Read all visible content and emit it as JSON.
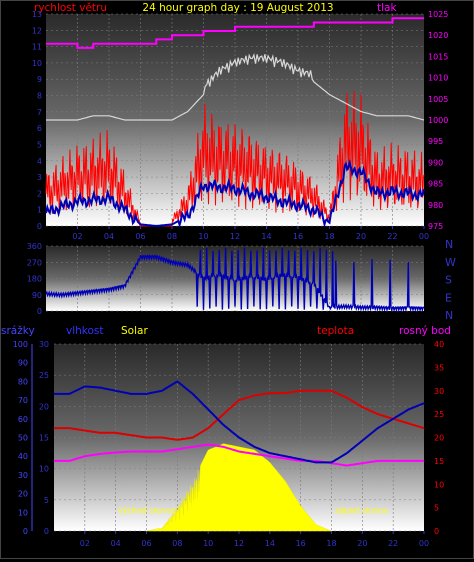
{
  "title": "24 hour graph day : 19 August 2013",
  "colors": {
    "wind_avg": "#0000b4",
    "wind_gust": "#ff0000",
    "pressure": "#ff00ff",
    "humidity": "#0000b4",
    "temperature": "#dc0000",
    "dewpoint": "#ff00ff",
    "solar": "#ffff00",
    "rain_axis": "#4444ff",
    "axis_text": "#3333cc"
  },
  "wind": {
    "left_label": "rychlost větru",
    "right_label": "tlak",
    "y_ticks": [
      "0",
      "1",
      "2",
      "3",
      "4",
      "5",
      "6",
      "7",
      "8",
      "9",
      "10",
      "11",
      "12",
      "13"
    ],
    "pressure_ticks": [
      "975",
      "980",
      "985",
      "990",
      "995",
      "1000",
      "1005",
      "1010",
      "1015",
      "1020",
      "1025"
    ],
    "x_ticks": [
      "02",
      "04",
      "06",
      "08",
      "10",
      "12",
      "14",
      "16",
      "18",
      "20",
      "22",
      "00"
    ]
  },
  "direction": {
    "y_ticks": [
      "0",
      "90",
      "180",
      "270",
      "360"
    ],
    "compass": [
      "N",
      "W",
      "S",
      "E",
      "N"
    ]
  },
  "temp": {
    "rain_label": "srážky",
    "humidity_label": "vlhkost",
    "solar_label": "Solar",
    "temp_label": "teplota",
    "dew_label": "rosný bod",
    "rain_ticks": [
      "0",
      "10",
      "20",
      "30",
      "40",
      "50",
      "60",
      "70",
      "80",
      "90",
      "100"
    ],
    "hum_ticks": [
      "0",
      "5",
      "10",
      "15",
      "20",
      "25",
      "30"
    ],
    "temp_ticks": [
      "0",
      "5",
      "10",
      "15",
      "20",
      "25",
      "30",
      "35",
      "40"
    ],
    "sunrise_label": "východ slunce",
    "sunset_label": "západ slunce",
    "x_ticks": [
      "02",
      "04",
      "06",
      "08",
      "10",
      "12",
      "14",
      "16",
      "18",
      "20",
      "22",
      "00"
    ]
  },
  "chart_data": [
    {
      "type": "line",
      "title": "24 hour graph day : 19 August 2013",
      "xlabel": "",
      "ylabel": "rychlost větru",
      "ylim": [
        0,
        13
      ],
      "y2label": "tlak",
      "y2lim": [
        975,
        1025
      ],
      "x": [
        0,
        1,
        2,
        3,
        4,
        5,
        6,
        7,
        8,
        9,
        10,
        11,
        12,
        13,
        14,
        15,
        16,
        17,
        18,
        19,
        20,
        21,
        22,
        23,
        24
      ],
      "series": [
        {
          "name": "rychlost větru",
          "values": [
            0.8,
            1.2,
            1.5,
            1.6,
            1.7,
            1.0,
            0.1,
            0.0,
            0.1,
            0.6,
            2.5,
            2.4,
            2.3,
            2.0,
            1.8,
            1.5,
            1.3,
            1.0,
            0.2,
            3.6,
            3.3,
            2.0,
            2.1,
            2.0,
            1.9
          ]
        },
        {
          "name": "nárazy",
          "values": [
            2.0,
            2.5,
            3.0,
            3.2,
            3.5,
            2.0,
            0.2,
            0.0,
            0.3,
            1.5,
            4.5,
            4.0,
            3.8,
            3.5,
            3.0,
            2.8,
            2.3,
            1.8,
            0.5,
            5.0,
            4.8,
            2.8,
            3.0,
            2.9,
            2.6
          ]
        },
        {
          "name": "tlak",
          "values": [
            1018,
            1018,
            1017,
            1018,
            1018,
            1018,
            1018,
            1019,
            1020,
            1020,
            1021,
            1021,
            1022,
            1022,
            1022,
            1022,
            1022,
            1023,
            1023,
            1023,
            1023,
            1023,
            1024,
            1024,
            1024
          ]
        },
        {
          "name": "tlak průměr",
          "values": [
            1000,
            1000,
            1000,
            1001,
            1001,
            1000,
            1000,
            1000,
            1000,
            1002,
            1006,
            1010,
            1012,
            1013,
            1013,
            1012,
            1010,
            1009,
            1006,
            1004,
            1002,
            1001,
            1001,
            1001,
            1000
          ]
        }
      ]
    },
    {
      "type": "line",
      "title": "",
      "ylabel": "",
      "ylim": [
        0,
        360
      ],
      "x": [
        0,
        1,
        2,
        3,
        4,
        5,
        6,
        7,
        8,
        9,
        10,
        11,
        12,
        13,
        14,
        15,
        16,
        17,
        18,
        19,
        20,
        21,
        22,
        23,
        24
      ],
      "series": [
        {
          "name": "směr větru",
          "values": [
            95,
            90,
            100,
            110,
            120,
            140,
            300,
            300,
            270,
            255,
            180,
            200,
            170,
            190,
            175,
            200,
            185,
            150,
            20,
            25,
            20,
            20,
            15,
            18,
            15
          ]
        }
      ]
    },
    {
      "type": "line",
      "title": "",
      "ylabel": "vlhkost",
      "ylim": [
        0,
        30
      ],
      "y2label": "teplota",
      "y2lim": [
        0,
        40
      ],
      "x": [
        1,
        2,
        3,
        4,
        5,
        6,
        7,
        8,
        9,
        10,
        11,
        12,
        13,
        14,
        15,
        16,
        17,
        18,
        19,
        20,
        21,
        22,
        23,
        24
      ],
      "series": [
        {
          "name": "vlhkost",
          "values": [
            22.0,
            23.2,
            23.0,
            22.5,
            22.0,
            22.0,
            22.5,
            24.0,
            22.0,
            19.5,
            17.0,
            15.0,
            13.5,
            12.5,
            12.0,
            11.5,
            11.0,
            11.0,
            12.5,
            14.5,
            16.5,
            18.0,
            19.5,
            20.5
          ]
        },
        {
          "name": "teplota",
          "values": [
            22.0,
            21.5,
            21.0,
            21.0,
            20.5,
            20.0,
            20.0,
            19.5,
            20.0,
            22.0,
            25.0,
            28.0,
            29.0,
            29.5,
            29.5,
            30.0,
            30.0,
            30.0,
            28.5,
            26.5,
            25.0,
            24.0,
            23.0,
            22.0
          ]
        },
        {
          "name": "rosný bod",
          "values": [
            15.0,
            16.0,
            16.5,
            16.8,
            17.0,
            17.0,
            17.0,
            17.5,
            18.0,
            18.5,
            18.0,
            17.0,
            16.5,
            16.0,
            15.5,
            15.0,
            15.0,
            14.5,
            14.0,
            14.5,
            15.0,
            15.0,
            15.0,
            15.0
          ]
        },
        {
          "name": "Solar",
          "values": [
            0,
            0,
            0,
            0,
            0,
            0,
            0.5,
            4,
            8,
            13,
            14,
            13.5,
            13,
            11,
            8,
            4,
            1,
            0,
            0,
            0,
            0,
            0,
            0,
            0
          ]
        }
      ],
      "annotations": [
        "východ slunce",
        "západ slunce"
      ]
    }
  ]
}
